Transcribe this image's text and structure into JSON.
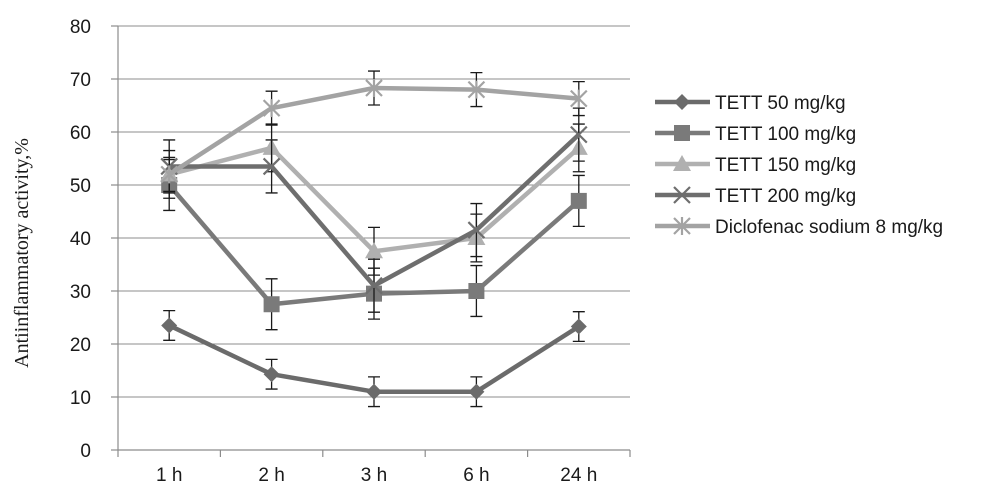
{
  "chart_data": {
    "type": "line",
    "ylabel": "Antiinflammatory activity,%",
    "ylim": [
      0,
      80
    ],
    "yticks": [
      0,
      10,
      20,
      30,
      40,
      50,
      60,
      70,
      80
    ],
    "categories": [
      "1 h",
      "2 h",
      "3 h",
      "6 h",
      "24 h"
    ],
    "grid": true,
    "legend": "right",
    "series": [
      {
        "name": "TETT 50 mg/kg",
        "values": [
          23.5,
          14.3,
          11.0,
          11.0,
          23.3
        ],
        "errors": [
          2.8,
          2.8,
          2.8,
          2.8,
          2.8
        ],
        "color": "#6b6b6b",
        "marker": "diamond"
      },
      {
        "name": "TETT 100 mg/kg",
        "values": [
          50.0,
          27.5,
          29.5,
          30.0,
          47.0
        ],
        "errors": [
          4.8,
          4.8,
          4.8,
          4.8,
          4.8
        ],
        "color": "#7a7a7a",
        "marker": "square"
      },
      {
        "name": "TETT 150 mg/kg",
        "values": [
          52.0,
          57.0,
          37.5,
          40.0,
          57.0
        ],
        "errors": [
          4.5,
          4.5,
          4.5,
          4.5,
          4.5
        ],
        "color": "#b0b0b0",
        "marker": "triangle"
      },
      {
        "name": "TETT 200 mg/kg",
        "values": [
          53.5,
          53.5,
          31.0,
          41.5,
          59.5
        ],
        "errors": [
          5.0,
          5.0,
          5.0,
          5.0,
          5.0
        ],
        "color": "#6e6e6e",
        "marker": "x"
      },
      {
        "name": "Diclofenac sodium 8 mg/kg",
        "values": [
          52.0,
          64.5,
          68.3,
          68.0,
          66.3
        ],
        "errors": [
          3.2,
          3.2,
          3.2,
          3.2,
          3.2
        ],
        "color": "#a3a3a3",
        "marker": "star"
      }
    ]
  }
}
